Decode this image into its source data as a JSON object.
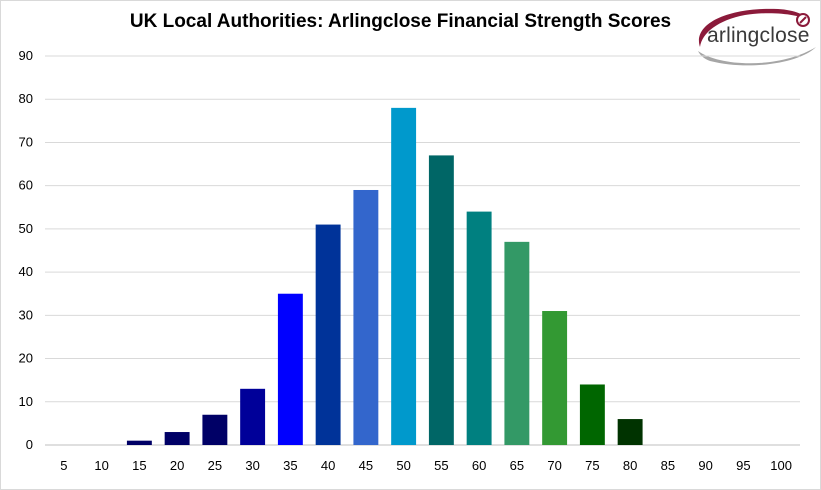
{
  "title": "UK Local Authorities: Arlingclose Financial Strength Scores",
  "logo": {
    "text": "arlingclose",
    "colors": {
      "maroon": "#8b1a3a",
      "grey": "#9a9a9a"
    }
  },
  "chart_data": {
    "type": "bar",
    "title": "UK Local Authorities: Arlingclose Financial Strength Scores",
    "xlabel": "",
    "ylabel": "",
    "categories": [
      "5",
      "10",
      "15",
      "20",
      "25",
      "30",
      "35",
      "40",
      "45",
      "50",
      "55",
      "60",
      "65",
      "70",
      "75",
      "80",
      "85",
      "90",
      "95",
      "100"
    ],
    "values": [
      0,
      0,
      1,
      3,
      7,
      13,
      35,
      51,
      59,
      78,
      67,
      54,
      47,
      31,
      14,
      6,
      0,
      0,
      0,
      0
    ],
    "bar_colors": [
      "#000066",
      "#000066",
      "#000066",
      "#000066",
      "#000066",
      "#000099",
      "#0000ff",
      "#003399",
      "#3366cc",
      "#0099cc",
      "#006666",
      "#008080",
      "#339966",
      "#339933",
      "#006600",
      "#003300",
      "#003300",
      "#003300",
      "#003300",
      "#003300"
    ],
    "ylim": [
      0,
      90
    ],
    "yticks": [
      0,
      10,
      20,
      30,
      40,
      50,
      60,
      70,
      80,
      90
    ],
    "grid": true,
    "legend": "none"
  }
}
